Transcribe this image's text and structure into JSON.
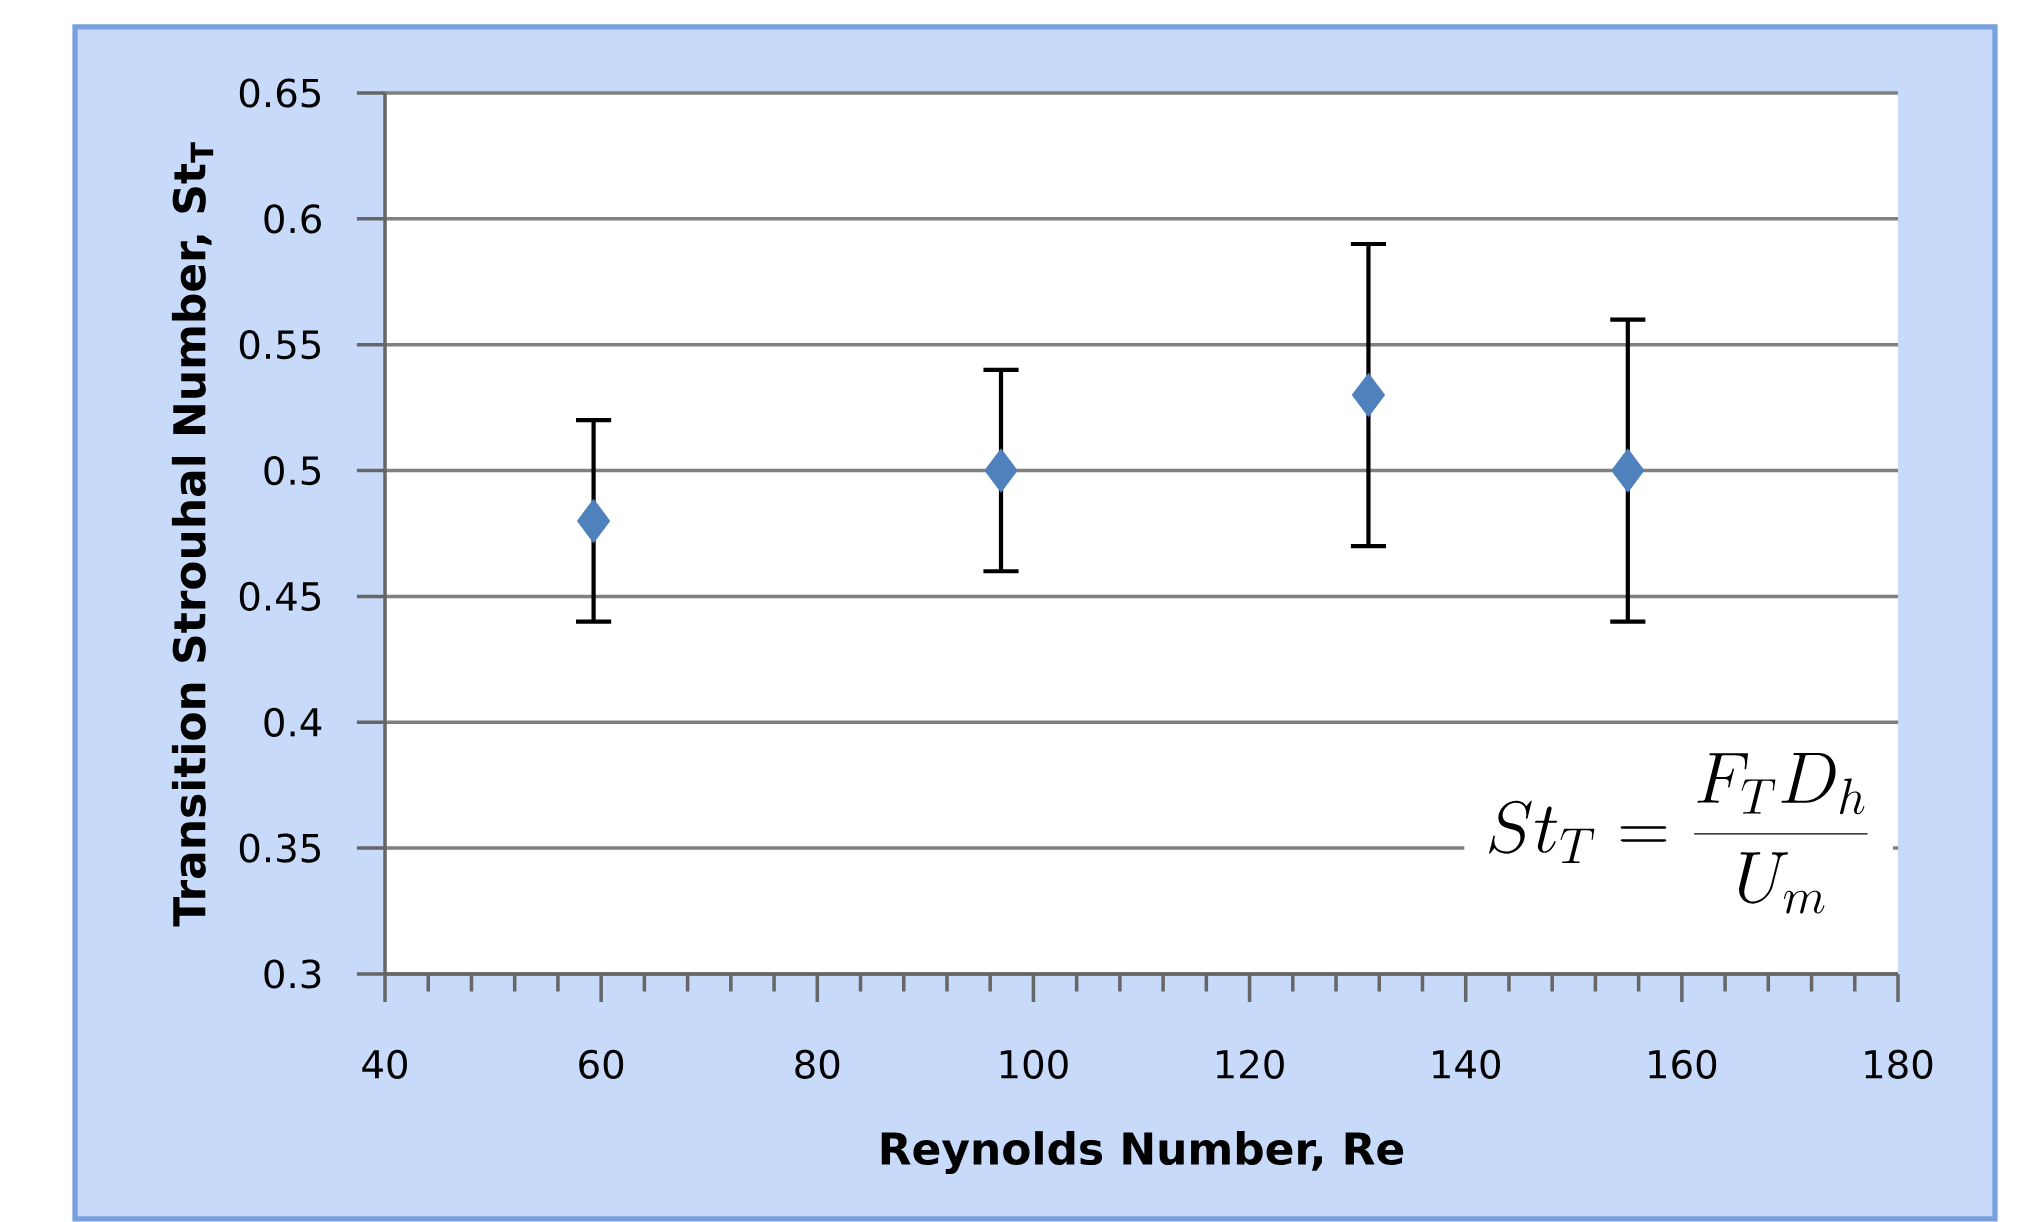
{
  "chart_data": {
    "type": "scatter",
    "xlabel": "Reynolds Number, Re",
    "ylabel": "Transition Strouhal Number, St$_{T}$",
    "x": [
      59.3,
      97,
      131,
      155
    ],
    "series": [
      {
        "color": "#4f81bd",
        "values": [
          0.48,
          0.5,
          0.53,
          0.5
        ],
        "errors": [
          0.04,
          0.04,
          0.06,
          0.06
        ]
      }
    ],
    "xlim": [
      40,
      180
    ],
    "xticks": [
      40,
      60,
      80,
      100,
      120,
      140,
      160,
      180
    ],
    "ylim": [
      0.3,
      0.65
    ],
    "yticks": [
      0.3,
      0.35,
      0.4,
      0.45,
      0.5,
      0.55,
      0.6,
      0.65
    ],
    "grid": "y",
    "marker": "diamond",
    "annotations": [
      "St_T = \\frac{F_T D_h}{U_m}"
    ]
  }
}
